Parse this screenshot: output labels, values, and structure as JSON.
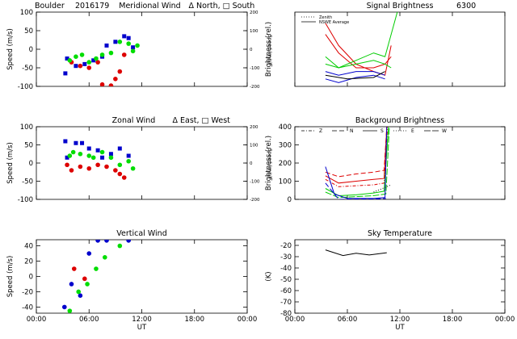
{
  "chart_data": [
    {
      "type": "scatter",
      "site": "Boulder",
      "date": "2016179",
      "title": "Meridional Wind",
      "note": "Δ North, □ South",
      "ylabel": "Speed (m/s)",
      "y2label": "Speed (m/s)",
      "xlim": [
        0,
        24
      ],
      "xticks": [
        0,
        6,
        12,
        18,
        24
      ],
      "ylim": [
        -100,
        100
      ],
      "yticks": [
        -100,
        -50,
        0,
        50,
        100
      ],
      "y2lim": [
        -200,
        200
      ],
      "y2ticks": [
        -200,
        -100,
        0,
        100,
        200
      ],
      "series": [
        {
          "color": "#0000cc",
          "marker": "square",
          "x": [
            3.3,
            3.5,
            4.5,
            5.5,
            6.5,
            7.5,
            8,
            9,
            10,
            10.5,
            11
          ],
          "values": [
            -65,
            -25,
            -45,
            -40,
            -30,
            -20,
            10,
            20,
            35,
            30,
            5
          ]
        },
        {
          "color": "#dd0000",
          "marker": "circle",
          "x": [
            4,
            5,
            6,
            7,
            7.5,
            8.5,
            9,
            9.5,
            10
          ],
          "values": [
            -35,
            -45,
            -50,
            -35,
            -95,
            -98,
            -80,
            -60,
            -15
          ]
        },
        {
          "color": "#00dd00",
          "marker": "circle",
          "x": [
            3.8,
            4.5,
            5.2,
            6,
            6.8,
            7.5,
            8.5,
            9.5,
            10.5,
            11,
            11.5
          ],
          "values": [
            -30,
            -20,
            -15,
            -35,
            -25,
            -15,
            -10,
            20,
            15,
            -5,
            10
          ]
        }
      ]
    },
    {
      "type": "scatter",
      "title": "Zonal Wind",
      "note": "Δ East, □ West",
      "ylabel": "Speed (m/s)",
      "y2label": "Speed (m/s)",
      "xlim": [
        0,
        24
      ],
      "xticks": [
        0,
        6,
        12,
        18,
        24
      ],
      "ylim": [
        -100,
        100
      ],
      "yticks": [
        -100,
        -50,
        0,
        50,
        100
      ],
      "y2lim": [
        -200,
        200
      ],
      "y2ticks": [
        -200,
        -100,
        0,
        100,
        200
      ],
      "series": [
        {
          "color": "#0000cc",
          "marker": "square",
          "x": [
            3.3,
            3.5,
            4.5,
            5.2,
            6,
            7,
            7.5,
            8.5,
            9.5,
            10.5
          ],
          "values": [
            60,
            15,
            55,
            55,
            40,
            35,
            15,
            25,
            40,
            20
          ]
        },
        {
          "color": "#dd0000",
          "marker": "circle",
          "x": [
            3.5,
            4,
            5,
            6,
            7,
            8,
            9,
            9.5,
            10
          ],
          "values": [
            -5,
            -20,
            -10,
            -15,
            -5,
            -10,
            -20,
            -30,
            -40
          ]
        },
        {
          "color": "#00dd00",
          "marker": "circle",
          "x": [
            3.8,
            4.2,
            5,
            6,
            6.5,
            7.5,
            8.5,
            9.5,
            10.5,
            11
          ],
          "values": [
            20,
            30,
            25,
            20,
            15,
            30,
            15,
            -5,
            5,
            -15
          ]
        }
      ]
    },
    {
      "type": "scatter",
      "title": "Vertical Wind",
      "ylabel": "Speed (m/s)",
      "xlabel": "UT",
      "xlim": [
        0,
        24
      ],
      "xticks": [
        {
          "value": 0,
          "label": "00:00"
        },
        {
          "value": 6,
          "label": "06:00"
        },
        {
          "value": 12,
          "label": "12:00"
        },
        {
          "value": 18,
          "label": "18:00"
        },
        {
          "value": 24,
          "label": "00:00"
        }
      ],
      "ylim": [
        -48,
        48
      ],
      "yticks": [
        -40,
        -20,
        0,
        20,
        40
      ],
      "series": [
        {
          "color": "#0000cc",
          "marker": "circle",
          "x": [
            3.2,
            4,
            5,
            6,
            7,
            8,
            10.5
          ],
          "values": [
            -40,
            -10,
            -25,
            30,
            47,
            47,
            47
          ]
        },
        {
          "color": "#dd0000",
          "marker": "circle",
          "x": [
            4.3,
            5.5
          ],
          "values": [
            10,
            -3
          ]
        },
        {
          "color": "#00dd00",
          "marker": "circle",
          "x": [
            3.8,
            4.8,
            5.8,
            6.8,
            7.8,
            9.5
          ],
          "values": [
            -45,
            -20,
            -10,
            10,
            25,
            40
          ]
        }
      ]
    },
    {
      "type": "line",
      "title": "Signal Brightness",
      "subtitle": "6300",
      "ylabel": "Brightness (rel.)",
      "xlim": [
        0,
        24
      ],
      "xticks": [
        0,
        6,
        12,
        18,
        24
      ],
      "ylim": [
        0,
        100
      ],
      "legend": [
        {
          "label": "Zenith",
          "dash": "1,2"
        },
        {
          "label": "NSWE Average",
          "dash": ""
        }
      ],
      "series": [
        {
          "color": "#dd0000",
          "dash": "",
          "x": [
            3.5,
            5,
            7,
            9,
            10.3,
            11
          ],
          "values": [
            85,
            55,
            30,
            20,
            15,
            55
          ]
        },
        {
          "color": "#dd0000",
          "dash": "",
          "x": [
            3.5,
            5,
            7,
            9,
            10.3,
            11
          ],
          "values": [
            70,
            45,
            25,
            25,
            30,
            40
          ]
        },
        {
          "color": "#00cc00",
          "dash": "",
          "x": [
            3.5,
            5,
            7,
            9,
            10.3,
            11.7
          ],
          "values": [
            40,
            25,
            35,
            45,
            40,
            100
          ]
        },
        {
          "color": "#00cc00",
          "dash": "",
          "x": [
            3.5,
            5,
            7,
            9,
            10.3,
            11
          ],
          "values": [
            30,
            25,
            30,
            35,
            30,
            25
          ]
        },
        {
          "color": "#0000cc",
          "dash": "",
          "x": [
            3.5,
            5,
            7,
            9,
            10.3
          ],
          "values": [
            20,
            15,
            20,
            20,
            15
          ]
        },
        {
          "color": "#0000cc",
          "dash": "",
          "x": [
            3.5,
            5,
            7,
            9,
            10.3
          ],
          "values": [
            10,
            5,
            12,
            15,
            10
          ]
        },
        {
          "color": "#000000",
          "dash": "",
          "x": [
            3.5,
            6,
            9,
            10.3
          ],
          "values": [
            15,
            10,
            12,
            20
          ]
        }
      ]
    },
    {
      "type": "line",
      "title": "Background Brightness",
      "ylabel": "Brightness (rel.)",
      "xlim": [
        0,
        24
      ],
      "xticks": [
        0,
        6,
        12,
        18,
        24
      ],
      "ylim": [
        0,
        400
      ],
      "yticks": [
        0,
        100,
        200,
        300,
        400
      ],
      "legend": [
        {
          "label": "Z",
          "dash": "4,2,1,2"
        },
        {
          "label": "N",
          "dash": "6,3"
        },
        {
          "label": "S",
          "dash": ""
        },
        {
          "label": "E",
          "dash": "1,2"
        },
        {
          "label": "W",
          "dash": "8,2"
        }
      ],
      "series": [
        {
          "color": "#dd0000",
          "dash": "6,3",
          "x": [
            3.5,
            5,
            7,
            9,
            10.2,
            10.5
          ],
          "values": [
            150,
            125,
            140,
            150,
            160,
            400
          ]
        },
        {
          "color": "#dd0000",
          "dash": "",
          "x": [
            3.5,
            5,
            7,
            9,
            10.2,
            10.5
          ],
          "values": [
            130,
            90,
            100,
            110,
            115,
            400
          ]
        },
        {
          "color": "#dd0000",
          "dash": "4,2,1,2",
          "x": [
            3.5,
            5,
            7,
            9,
            10.2,
            10.6
          ],
          "values": [
            110,
            70,
            75,
            80,
            90,
            400
          ]
        },
        {
          "color": "#00cc00",
          "dash": "",
          "x": [
            3.5,
            5,
            7,
            9,
            10.2,
            10.7
          ],
          "values": [
            60,
            20,
            25,
            35,
            45,
            400
          ]
        },
        {
          "color": "#00cc00",
          "dash": "8,2",
          "x": [
            3.5,
            5,
            7,
            9,
            10.4,
            10.8
          ],
          "values": [
            40,
            10,
            15,
            20,
            30,
            400
          ]
        },
        {
          "color": "#0000cc",
          "dash": "",
          "x": [
            3.5,
            4.5,
            6,
            9,
            10.3,
            10.5
          ],
          "values": [
            180,
            30,
            5,
            5,
            10,
            400
          ]
        },
        {
          "color": "#0000cc",
          "dash": "6,3",
          "x": [
            3.5,
            5,
            9,
            10.4
          ],
          "values": [
            90,
            0,
            2,
            5
          ]
        },
        {
          "color": "#000000",
          "dash": "1,2",
          "x": [
            9,
            10.5,
            11
          ],
          "values": [
            40,
            70,
            80
          ]
        }
      ]
    },
    {
      "type": "line",
      "title": "Sky Temperature",
      "ylabel": "(K)",
      "xlabel": "UT",
      "xlim": [
        0,
        24
      ],
      "xticks": [
        {
          "value": 0,
          "label": "00:00"
        },
        {
          "value": 6,
          "label": "06:00"
        },
        {
          "value": 12,
          "label": "12:00"
        },
        {
          "value": 18,
          "label": "18:00"
        },
        {
          "value": 24,
          "label": "00:00"
        }
      ],
      "ylim": [
        -80,
        -15
      ],
      "yticks": [
        -80,
        -70,
        -60,
        -50,
        -40,
        -30,
        -20
      ],
      "series": [
        {
          "color": "#000000",
          "dash": "",
          "x": [
            3.5,
            5.5,
            7,
            8.5,
            9.5,
            10.5
          ],
          "values": [
            -24,
            -29,
            -27,
            -28.5,
            -27.5,
            -26.5
          ]
        }
      ]
    }
  ]
}
